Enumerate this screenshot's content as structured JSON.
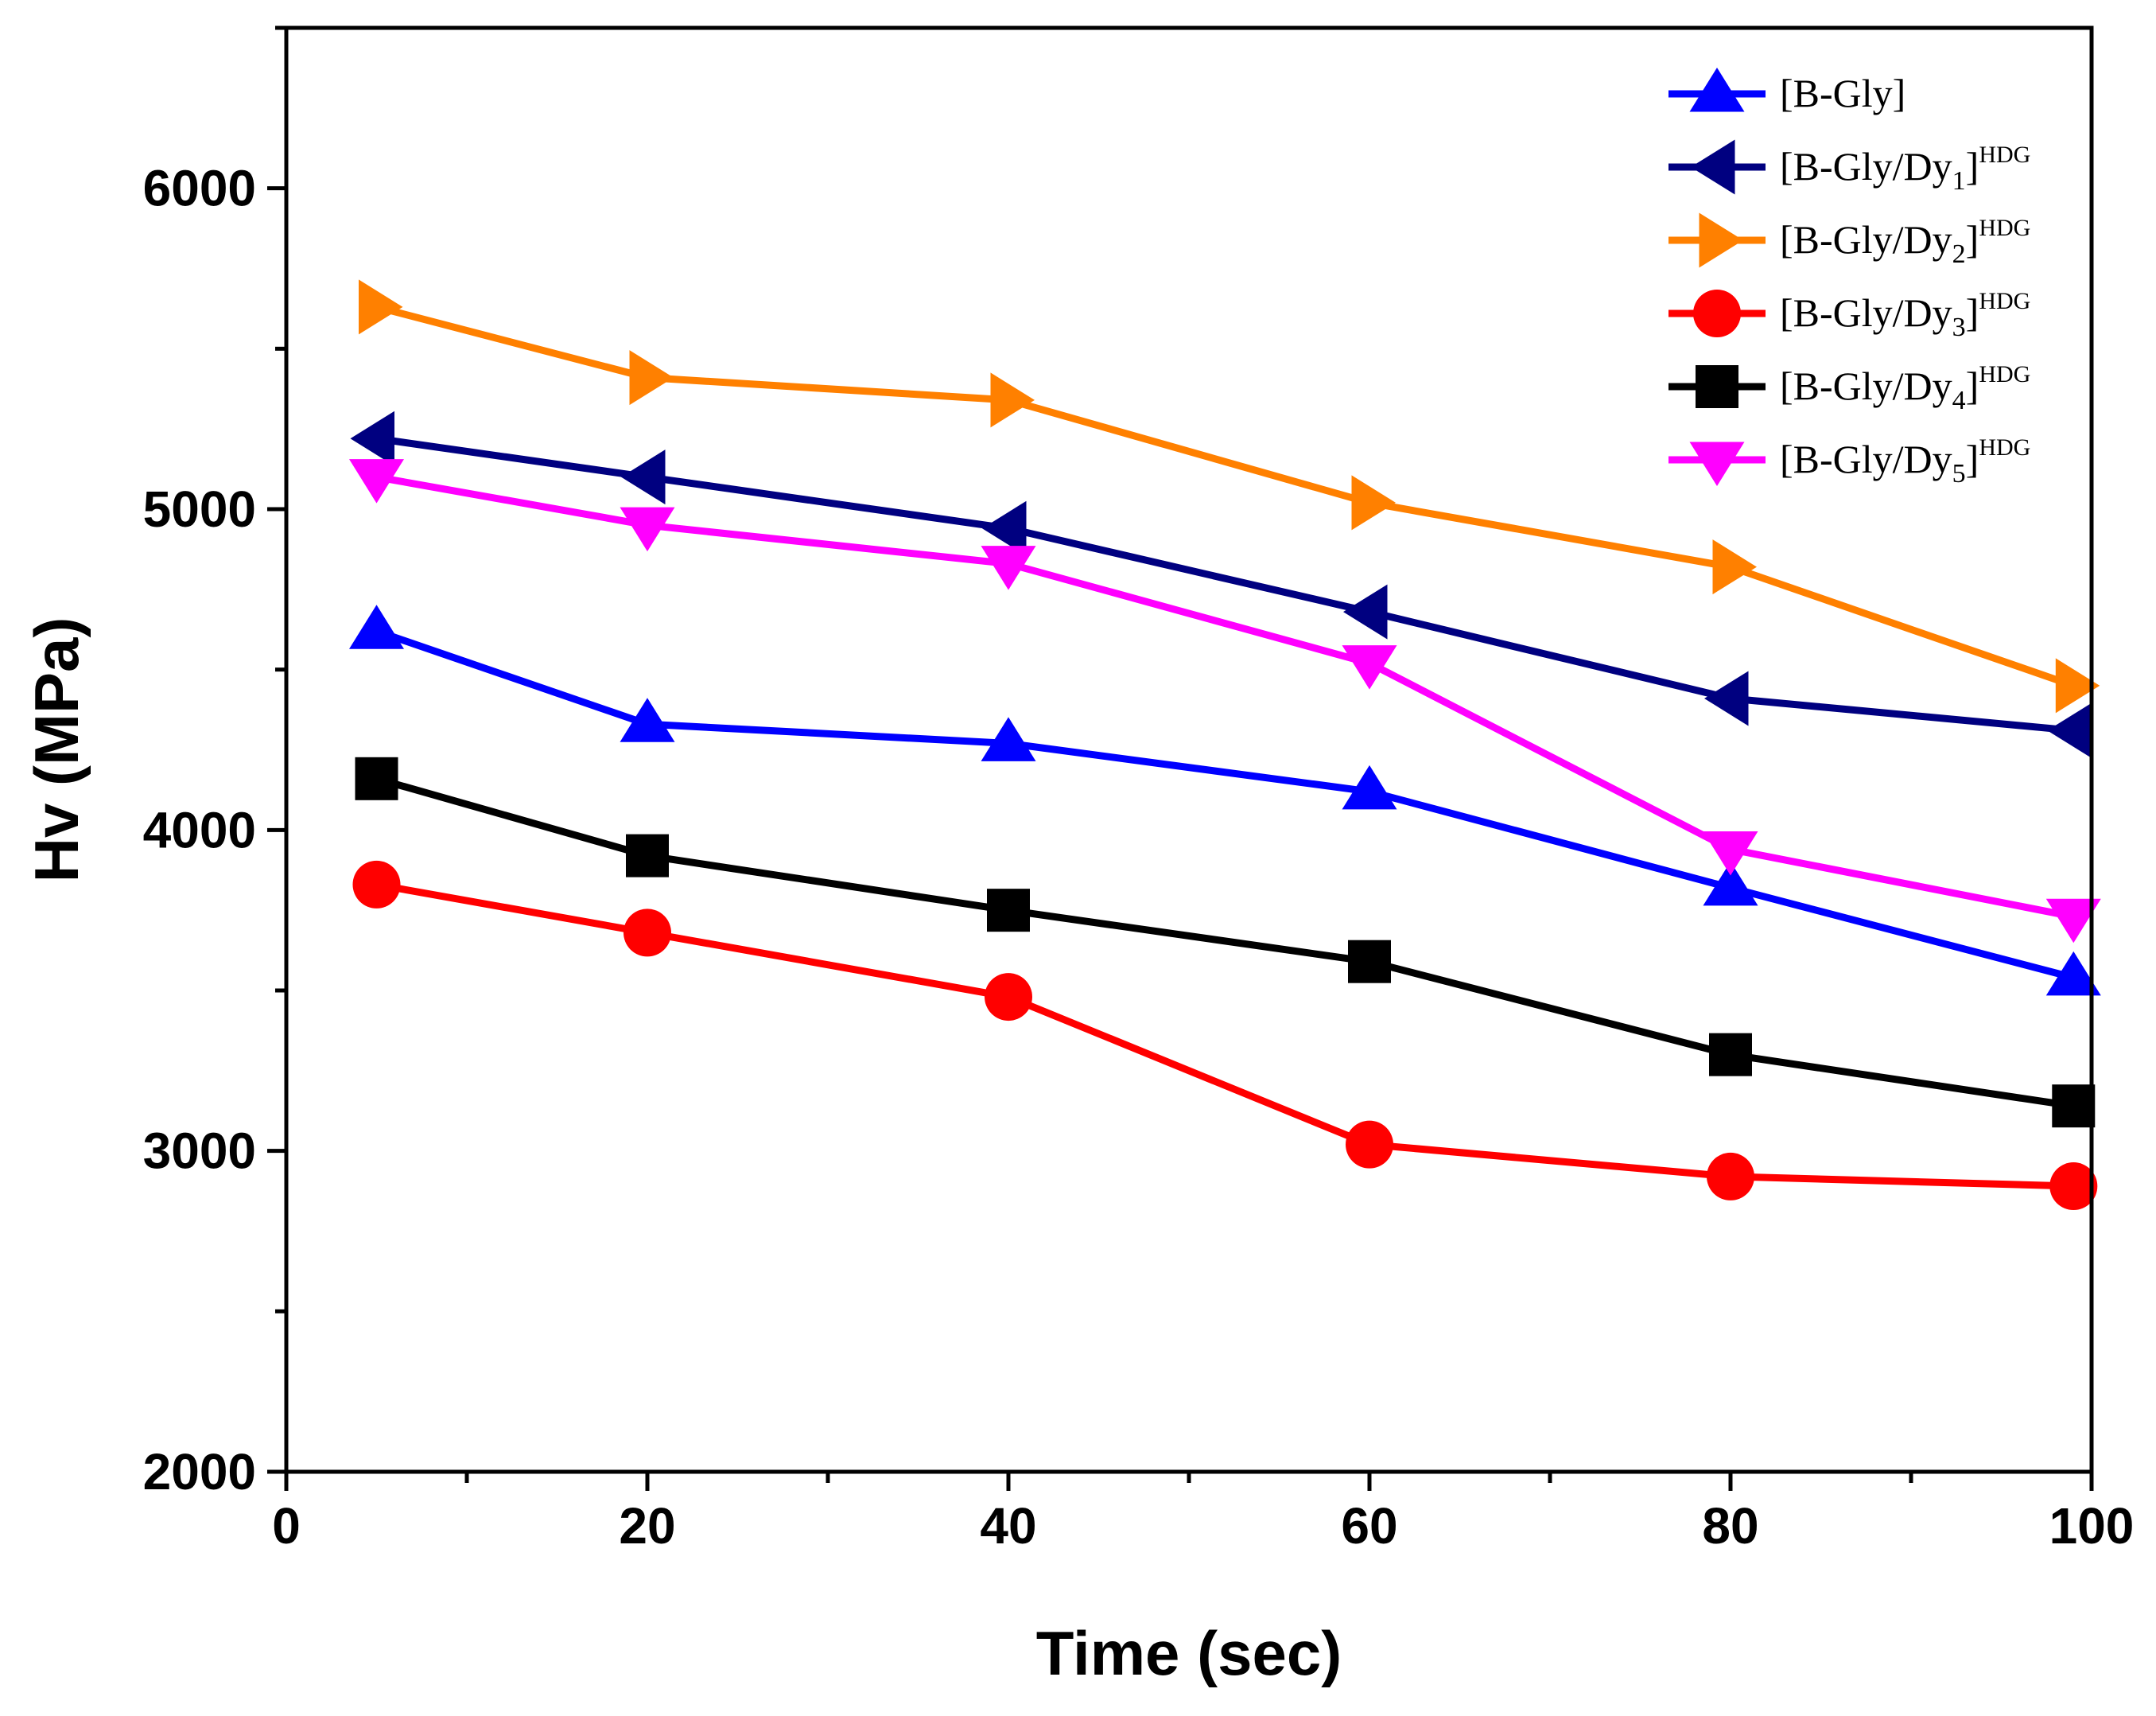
{
  "chart_data": {
    "type": "line",
    "title": "",
    "xlabel": "Time (sec)",
    "ylabel": "Hv (MPa)",
    "xlim": [
      0,
      100
    ],
    "ylim": [
      2000,
      6500
    ],
    "x_ticks": [
      0,
      20,
      40,
      60,
      80,
      100
    ],
    "y_ticks": [
      2000,
      3000,
      4000,
      5000,
      6000
    ],
    "grid": false,
    "legend_position": "top-right",
    "x": [
      5,
      20,
      40,
      60,
      80,
      99
    ],
    "series": [
      {
        "name": "[B-Gly]",
        "base": "[B-Gly]",
        "sub": "",
        "sup": "",
        "color": "#0000ff",
        "marker": "triangle-up",
        "values": [
          4620,
          4330,
          4270,
          4120,
          3820,
          3540
        ]
      },
      {
        "name": "[B-Gly/Dy1]HDG",
        "base": "[B-Gly/Dy",
        "sub": "1",
        "close": "]",
        "sup": "HDG",
        "color": "#000080",
        "marker": "triangle-left",
        "values": [
          5220,
          5100,
          4940,
          4680,
          4410,
          4310
        ]
      },
      {
        "name": "[B-Gly/Dy2]HDG",
        "base": "[B-Gly/Dy",
        "sub": "2",
        "close": "]",
        "sup": "HDG",
        "color": "#ff8000",
        "marker": "triangle-right",
        "values": [
          5630,
          5410,
          5340,
          5020,
          4820,
          4450
        ]
      },
      {
        "name": "[B-Gly/Dy3]HDG",
        "base": "[B-Gly/Dy",
        "sub": "3",
        "close": "]",
        "sup": "HDG",
        "color": "#ff0000",
        "marker": "circle",
        "values": [
          3830,
          3680,
          3480,
          3020,
          2920,
          2890
        ]
      },
      {
        "name": "[B-Gly/Dy4]HDG",
        "base": "[B-Gly/Dy",
        "sub": "4",
        "close": "]",
        "sup": "HDG",
        "color": "#000000",
        "marker": "square",
        "values": [
          4160,
          3920,
          3750,
          3590,
          3300,
          3140
        ]
      },
      {
        "name": "[B-Gly/Dy5]HDG",
        "base": "[B-Gly/Dy",
        "sub": "5",
        "close": "]",
        "sup": "HDG",
        "color": "#ff00ff",
        "marker": "triangle-down",
        "values": [
          5100,
          4950,
          4830,
          4520,
          3940,
          3730
        ]
      }
    ]
  }
}
